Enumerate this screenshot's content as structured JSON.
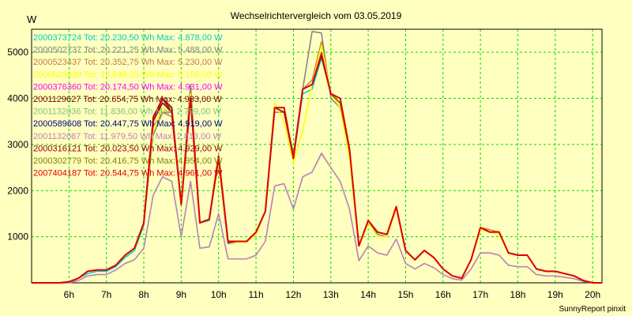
{
  "chart_data": {
    "type": "line",
    "title": "Wechselrichtervergleich vom 03.05.2019",
    "ylabel": "W",
    "xlabel": "",
    "credit": "SunnyReport pinxit",
    "ylim": [
      0,
      5500
    ],
    "xlim": [
      5,
      20.25
    ],
    "x_ticks": [
      6,
      7,
      8,
      9,
      10,
      11,
      12,
      13,
      14,
      15,
      16,
      17,
      18,
      19,
      20
    ],
    "x_tick_labels": [
      "6h",
      "7h",
      "8h",
      "9h",
      "10h",
      "11h",
      "12h",
      "13h",
      "14h",
      "15h",
      "16h",
      "17h",
      "18h",
      "19h",
      "20h"
    ],
    "y_ticks": [
      1000,
      2000,
      3000,
      4000,
      5000
    ],
    "y_tick_labels": [
      "1000",
      "2000",
      "3000",
      "4000",
      "5000"
    ],
    "grid": true,
    "legend_position": "top-left",
    "x": [
      5.0,
      5.25,
      5.5,
      5.75,
      6.0,
      6.25,
      6.5,
      6.75,
      7.0,
      7.25,
      7.5,
      7.75,
      8.0,
      8.25,
      8.5,
      8.75,
      9.0,
      9.25,
      9.5,
      9.75,
      10.0,
      10.25,
      10.5,
      10.75,
      11.0,
      11.25,
      11.5,
      11.75,
      12.0,
      12.25,
      12.5,
      12.75,
      13.0,
      13.25,
      13.5,
      13.75,
      14.0,
      14.25,
      14.5,
      14.75,
      15.0,
      15.25,
      15.5,
      15.75,
      16.0,
      16.25,
      16.5,
      16.75,
      17.0,
      17.25,
      17.5,
      17.75,
      18.0,
      18.25,
      18.5,
      18.75,
      19.0,
      19.25,
      19.5,
      19.75,
      20.0,
      20.25
    ],
    "series": [
      {
        "name": "2000373724 Tot: 20.230,50 Wh Max: 4.878,00 W",
        "color": "#00cccc",
        "values": [
          0,
          0,
          0,
          0,
          0,
          100,
          200,
          250,
          250,
          350,
          550,
          700,
          1250,
          3500,
          3900,
          3800,
          1700,
          4000,
          1300,
          1350,
          2700,
          900,
          900,
          900,
          1100,
          1550,
          3800,
          3700,
          2700,
          4100,
          4200,
          4878,
          4100,
          3900,
          2900,
          800,
          1350,
          1100,
          1050,
          1650,
          700,
          500,
          700,
          550,
          300,
          150,
          100,
          500,
          1200,
          1100,
          1100,
          650,
          600,
          600,
          300,
          250,
          250,
          200,
          150,
          50,
          0,
          0
        ]
      },
      {
        "name": "2000502737 Tot: 20.221,25 Wh Max: 5.488,00 W",
        "color": "#808080",
        "values": [
          0,
          0,
          0,
          0,
          20,
          100,
          250,
          280,
          280,
          380,
          600,
          750,
          1300,
          3200,
          3700,
          3700,
          1700,
          4300,
          1300,
          1380,
          2600,
          850,
          880,
          880,
          1050,
          1550,
          3700,
          3700,
          2800,
          4200,
          5450,
          5420,
          4000,
          3800,
          2800,
          800,
          1350,
          1050,
          1000,
          1650,
          700,
          500,
          700,
          550,
          300,
          150,
          100,
          500,
          1200,
          1100,
          1100,
          650,
          600,
          600,
          300,
          250,
          250,
          200,
          150,
          50,
          0,
          0
        ]
      },
      {
        "name": "2000523437 Tot: 20.352,75 Wh Max: 5.230,00 W",
        "color": "#c08040",
        "values": [
          0,
          0,
          0,
          0,
          20,
          100,
          250,
          280,
          280,
          380,
          600,
          750,
          1300,
          3400,
          3700,
          3600,
          1700,
          4200,
          1300,
          1380,
          2700,
          880,
          900,
          900,
          1100,
          1550,
          3800,
          3800,
          2700,
          4200,
          4400,
          5230,
          4100,
          3900,
          2900,
          800,
          1350,
          1100,
          1050,
          1650,
          700,
          500,
          700,
          550,
          300,
          150,
          100,
          500,
          1200,
          1150,
          1100,
          650,
          600,
          600,
          300,
          250,
          250,
          200,
          150,
          50,
          0,
          0
        ]
      },
      {
        "name": "2000623439 Tot: 19.848,25 Wh Max: 5.156,00 W",
        "color": "#ffff00",
        "values": [
          0,
          0,
          0,
          0,
          20,
          100,
          250,
          280,
          280,
          380,
          600,
          750,
          1300,
          3300,
          3800,
          3700,
          1700,
          4100,
          1300,
          1380,
          2600,
          880,
          880,
          880,
          1050,
          1550,
          3900,
          3500,
          2600,
          3300,
          4300,
          5156,
          4100,
          3800,
          2700,
          800,
          1300,
          1000,
          1000,
          1600,
          700,
          500,
          700,
          550,
          300,
          150,
          100,
          500,
          1150,
          1100,
          1050,
          650,
          600,
          600,
          300,
          250,
          250,
          200,
          150,
          50,
          0,
          0
        ]
      },
      {
        "name": "2000376360 Tot: 20.174,50 Wh Max: 4.931,00 W",
        "color": "#ff00ff",
        "values": [
          0,
          0,
          0,
          0,
          20,
          100,
          250,
          280,
          280,
          380,
          600,
          750,
          1300,
          3500,
          4000,
          3700,
          1700,
          4000,
          1300,
          1380,
          2700,
          880,
          900,
          900,
          1100,
          1550,
          3800,
          3800,
          2700,
          4200,
          4300,
          4931,
          4100,
          3900,
          2900,
          800,
          1350,
          1100,
          1050,
          1650,
          700,
          500,
          700,
          550,
          300,
          150,
          100,
          500,
          1200,
          1100,
          1100,
          650,
          600,
          600,
          300,
          250,
          250,
          200,
          150,
          50,
          0,
          0
        ]
      },
      {
        "name": "2001129627 Tot: 20.654,75 Wh Max: 4.983,00 W",
        "color": "#800000",
        "values": [
          0,
          0,
          0,
          0,
          20,
          100,
          250,
          280,
          280,
          380,
          600,
          750,
          1300,
          3600,
          4000,
          3800,
          1700,
          4000,
          1300,
          1380,
          2700,
          900,
          900,
          900,
          1100,
          1550,
          3800,
          3800,
          2700,
          4200,
          4300,
          4983,
          4100,
          3900,
          2900,
          800,
          1350,
          1100,
          1050,
          1650,
          700,
          500,
          700,
          550,
          300,
          150,
          100,
          500,
          1200,
          1100,
          1100,
          650,
          600,
          600,
          300,
          250,
          250,
          200,
          150,
          50,
          0,
          0
        ]
      },
      {
        "name": "2001132036 Tot: 11.836,00 Wh Max: 2.799,00 W",
        "color": "#80c080",
        "values": [
          0,
          0,
          0,
          0,
          0,
          50,
          150,
          180,
          180,
          280,
          420,
          500,
          750,
          1900,
          2300,
          2200,
          1000,
          2200,
          750,
          780,
          1500,
          520,
          520,
          520,
          600,
          900,
          2100,
          2150,
          1600,
          2300,
          2400,
          2799,
          2500,
          2200,
          1600,
          480,
          800,
          650,
          600,
          950,
          420,
          300,
          420,
          330,
          180,
          90,
          60,
          300,
          650,
          650,
          600,
          380,
          350,
          350,
          180,
          150,
          150,
          120,
          90,
          30,
          0,
          0
        ]
      },
      {
        "name": "2000589608 Tot: 20.447,75 Wh Max: 4.919,00 W",
        "color": "#000080",
        "values": [
          0,
          0,
          0,
          0,
          20,
          100,
          250,
          280,
          280,
          380,
          600,
          750,
          1300,
          3500,
          4000,
          3700,
          1700,
          4000,
          1300,
          1380,
          2700,
          900,
          900,
          900,
          1100,
          1550,
          3800,
          3800,
          2700,
          4200,
          4300,
          4919,
          4100,
          3900,
          2900,
          800,
          1350,
          1100,
          1050,
          1650,
          700,
          500,
          700,
          550,
          300,
          150,
          100,
          500,
          1200,
          1100,
          1100,
          650,
          600,
          600,
          300,
          250,
          250,
          200,
          150,
          50,
          0,
          0
        ]
      },
      {
        "name": "2001132087 Tot: 11.979,50 Wh Max: 2.813,00 W",
        "color": "#c080c0",
        "values": [
          0,
          0,
          0,
          0,
          0,
          50,
          150,
          180,
          180,
          280,
          420,
          500,
          750,
          1900,
          2300,
          2200,
          1000,
          2200,
          750,
          780,
          1500,
          520,
          520,
          520,
          600,
          900,
          2100,
          2150,
          1600,
          2300,
          2400,
          2813,
          2500,
          2200,
          1600,
          480,
          800,
          650,
          600,
          950,
          420,
          300,
          420,
          330,
          180,
          90,
          60,
          300,
          650,
          650,
          600,
          380,
          350,
          350,
          180,
          150,
          150,
          120,
          90,
          30,
          0,
          0
        ]
      },
      {
        "name": "2000316121 Tot: 20.023,50 Wh Max: 4.929,00 W",
        "color": "#a00000",
        "values": [
          0,
          0,
          0,
          0,
          20,
          100,
          250,
          280,
          280,
          380,
          600,
          750,
          1300,
          3500,
          3900,
          3700,
          1700,
          4000,
          1300,
          1380,
          2700,
          880,
          900,
          900,
          1100,
          1550,
          3800,
          3700,
          2700,
          4200,
          4300,
          4929,
          4100,
          3900,
          2900,
          800,
          1350,
          1100,
          1050,
          1650,
          700,
          500,
          700,
          550,
          300,
          150,
          100,
          500,
          1200,
          1100,
          1100,
          650,
          600,
          600,
          300,
          250,
          250,
          200,
          150,
          50,
          0,
          0
        ]
      },
      {
        "name": "2000302779 Tot: 20.416,75 Wh Max: 4.954,00 W",
        "color": "#808000",
        "values": [
          0,
          0,
          0,
          0,
          20,
          100,
          250,
          280,
          280,
          380,
          600,
          750,
          1300,
          3500,
          4000,
          3700,
          1700,
          4000,
          1300,
          1380,
          2700,
          900,
          900,
          900,
          1100,
          1550,
          3800,
          3800,
          2700,
          4200,
          4300,
          4954,
          4100,
          3900,
          2900,
          800,
          1350,
          1100,
          1050,
          1650,
          700,
          500,
          700,
          550,
          300,
          150,
          100,
          500,
          1200,
          1100,
          1100,
          650,
          600,
          600,
          300,
          250,
          250,
          200,
          150,
          50,
          0,
          0
        ]
      },
      {
        "name": "2007404187 Tot: 20.544,75 Wh Max: 4.961,00 W",
        "color": "#e00000",
        "values": [
          0,
          0,
          0,
          0,
          20,
          100,
          250,
          280,
          280,
          380,
          600,
          750,
          1300,
          3500,
          4000,
          3700,
          1700,
          4000,
          1300,
          1380,
          2750,
          900,
          900,
          900,
          1100,
          1550,
          3800,
          3800,
          2700,
          4200,
          4300,
          4961,
          4100,
          4000,
          2900,
          800,
          1350,
          1100,
          1050,
          1650,
          700,
          500,
          700,
          550,
          300,
          150,
          100,
          500,
          1200,
          1100,
          1100,
          650,
          600,
          600,
          300,
          250,
          250,
          200,
          150,
          50,
          0,
          0
        ]
      }
    ]
  }
}
